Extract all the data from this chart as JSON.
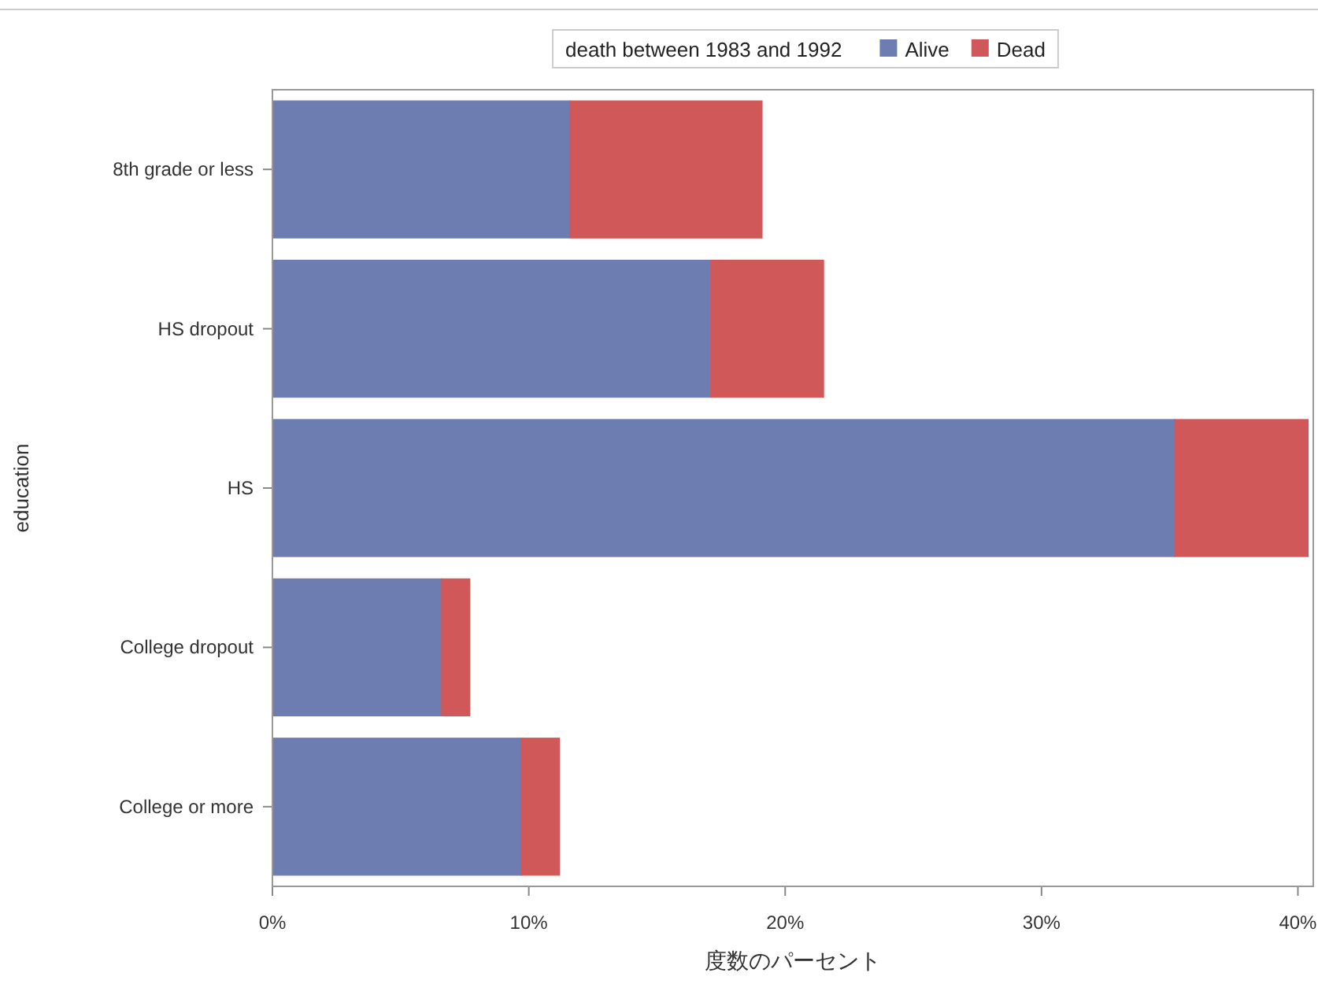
{
  "chart_data": {
    "type": "bar",
    "orientation": "horizontal",
    "stacked": true,
    "categories": [
      "8th grade or less",
      "HS dropout",
      "HS",
      "College dropout",
      "College or more"
    ],
    "series": [
      {
        "name": "Alive",
        "color": "#6d7db1",
        "values": [
          11.6,
          17.1,
          35.2,
          6.6,
          9.7
        ]
      },
      {
        "name": "Dead",
        "color": "#d05858",
        "values": [
          7.5,
          4.4,
          5.2,
          1.1,
          1.5
        ]
      }
    ],
    "xlabel": "度数のパーセント",
    "ylabel": "education",
    "legend_title": "death between 1983 and 1992",
    "legend": "top",
    "xlim": [
      0,
      40.6
    ],
    "xticks": [
      {
        "value": 0,
        "label": "0%"
      },
      {
        "value": 10,
        "label": "10%"
      },
      {
        "value": 20,
        "label": "20%"
      },
      {
        "value": 30,
        "label": "30%"
      },
      {
        "value": 40,
        "label": "40%"
      }
    ],
    "grid": false
  }
}
